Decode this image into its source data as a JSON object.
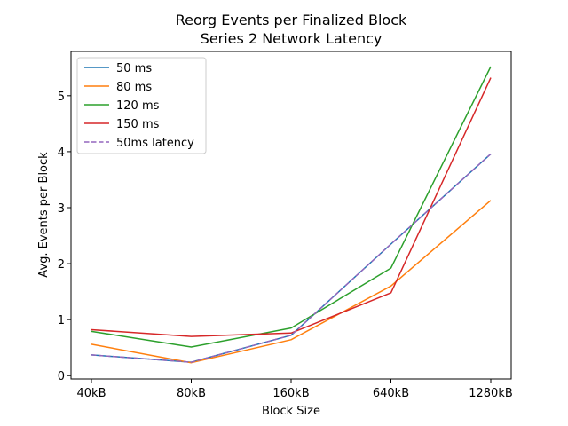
{
  "chart_data": {
    "type": "line",
    "title": "Reorg Events per Finalized Block",
    "subtitle": "Series 2 Network Latency",
    "xlabel": "Block Size",
    "ylabel": "Avg. Events per Block",
    "categories": [
      "40kB",
      "80kB",
      "160kB",
      "640kB",
      "1280kB"
    ],
    "ylim": [
      -0.06,
      5.79
    ],
    "yticks": [
      0,
      1,
      2,
      3,
      4,
      5
    ],
    "grid": false,
    "legend_position": "upper left",
    "series": [
      {
        "name": "50 ms",
        "color": "#1f77b4",
        "dashed": false,
        "values": [
          0.37,
          0.24,
          0.72,
          2.35,
          3.96
        ]
      },
      {
        "name": "80 ms",
        "color": "#ff7f0e",
        "dashed": false,
        "values": [
          0.56,
          0.23,
          0.64,
          1.6,
          3.13
        ]
      },
      {
        "name": "120 ms",
        "color": "#2ca02c",
        "dashed": false,
        "values": [
          0.79,
          0.51,
          0.85,
          1.92,
          5.52
        ]
      },
      {
        "name": "150 ms",
        "color": "#d62728",
        "dashed": false,
        "values": [
          0.82,
          0.7,
          0.76,
          1.48,
          5.32
        ]
      },
      {
        "name": "50ms latency",
        "color": "#9467bd",
        "dashed": true,
        "values": [
          0.37,
          0.24,
          0.72,
          2.35,
          3.96
        ]
      }
    ]
  }
}
